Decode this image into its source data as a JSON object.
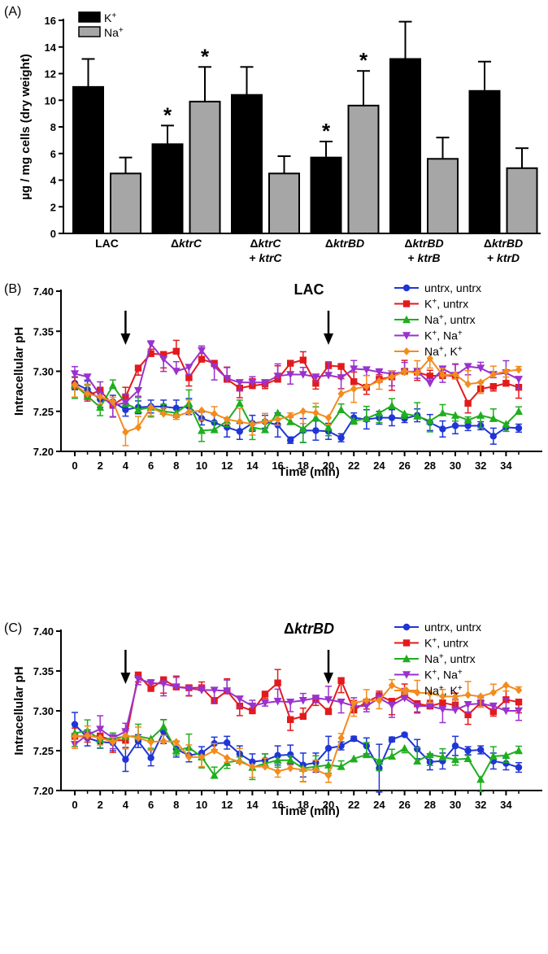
{
  "chart_data": [
    {
      "type": "bar",
      "panel_label": "(A)",
      "title": "",
      "ylabel": "µg / mg cells (dry weight)",
      "ylim": [
        0,
        16
      ],
      "yticks": [
        "0",
        "2",
        "4",
        "6",
        "8",
        "10",
        "12",
        "14",
        "16"
      ],
      "categories": [
        {
          "prefix": "",
          "italic": "",
          "line2_prefix": "",
          "line2_italic": "",
          "plain": "LAC"
        },
        {
          "prefix": "Δ",
          "italic": "ktrC",
          "line2_prefix": "",
          "line2_italic": ""
        },
        {
          "prefix": "Δ",
          "italic": "ktrC",
          "line2_prefix": "+ ",
          "line2_italic": "ktrC"
        },
        {
          "prefix": "Δ",
          "italic": "ktrBD",
          "line2_prefix": "",
          "line2_italic": ""
        },
        {
          "prefix": "Δ",
          "italic": "ktrBD",
          "line2_prefix": "+ ",
          "line2_italic": "ktrB"
        },
        {
          "prefix": "Δ",
          "italic": "ktrBD",
          "line2_prefix": "+ ",
          "line2_italic": "ktrD"
        }
      ],
      "series": [
        {
          "name": "K",
          "sup": "+",
          "color": "#000000",
          "values": [
            11.0,
            6.7,
            10.4,
            5.7,
            13.1,
            10.7
          ],
          "errors": [
            2.1,
            1.4,
            2.1,
            1.2,
            2.8,
            2.2
          ],
          "significant": [
            false,
            true,
            false,
            true,
            false,
            false
          ]
        },
        {
          "name": "Na",
          "sup": "+",
          "color": "#a6a6a6",
          "values": [
            4.5,
            9.9,
            4.5,
            9.6,
            5.6,
            4.9
          ],
          "errors": [
            1.2,
            2.6,
            1.3,
            2.6,
            1.6,
            1.5
          ],
          "significant": [
            false,
            true,
            false,
            true,
            false,
            false
          ]
        }
      ],
      "significance_mark": "*"
    },
    {
      "type": "line",
      "panel_label": "(B)",
      "title": "LAC",
      "title_italic": false,
      "title_prefix": "",
      "xlabel": "Time (min)",
      "ylabel": "Intracellular pH",
      "xlim": [
        0,
        35
      ],
      "ylim": [
        7.2,
        7.4
      ],
      "xticks": [
        0,
        2,
        4,
        6,
        8,
        10,
        12,
        14,
        16,
        18,
        20,
        22,
        24,
        26,
        28,
        30,
        32,
        34
      ],
      "yticks": [
        "7.20",
        "7.25",
        "7.30",
        "7.35",
        "7.40"
      ],
      "arrows_at": [
        4,
        20
      ],
      "x": [
        0,
        1,
        2,
        3,
        4,
        5,
        6,
        7,
        8,
        9,
        10,
        11,
        12,
        13,
        14,
        15,
        16,
        17,
        18,
        19,
        20,
        21,
        22,
        23,
        24,
        25,
        26,
        27,
        28,
        29,
        30,
        31,
        32,
        33,
        34,
        35
      ],
      "series": [
        {
          "name": "untrx, untrx",
          "color": "#1f35d6",
          "marker": "circle",
          "values": [
            7.285,
            7.277,
            7.265,
            7.262,
            7.252,
            7.255,
            7.256,
            7.256,
            7.254,
            7.256,
            7.241,
            7.236,
            7.23,
            7.225,
            7.235,
            7.237,
            7.233,
            7.214,
            7.226,
            7.226,
            7.225,
            7.217,
            7.242,
            7.24,
            7.242,
            7.242,
            7.241,
            7.245,
            7.236,
            7.228,
            7.232,
            7.232,
            7.232,
            7.219,
            7.23,
            7.229
          ],
          "errors": [
            0.008,
            0.012,
            0.01,
            0.008,
            0.008,
            0.008,
            0.008,
            0.008,
            0.01,
            0.01,
            0.008,
            0.01,
            0.012,
            0.01,
            0.01,
            0.008,
            0.015,
            0.004,
            0.015,
            0.012,
            0.01,
            0.005,
            0.006,
            0.012,
            0.008,
            0.01,
            0.005,
            0.008,
            0.01,
            0.01,
            0.01,
            0.006,
            0.005,
            0.01,
            0.005,
            0.005
          ]
        },
        {
          "name": "K",
          "name_sup": "+",
          "name_rest": ", untrx",
          "color": "#e31a1c",
          "marker": "square",
          "values": [
            7.282,
            7.27,
            7.276,
            7.258,
            7.268,
            7.304,
            7.322,
            7.321,
            7.325,
            7.292,
            7.315,
            7.31,
            7.29,
            7.279,
            7.282,
            7.284,
            7.29,
            7.31,
            7.314,
            7.285,
            7.307,
            7.306,
            7.287,
            7.28,
            7.29,
            7.293,
            7.3,
            7.299,
            7.294,
            7.295,
            7.294,
            7.26,
            7.278,
            7.281,
            7.285,
            7.28
          ]
        },
        {
          "name": "Na",
          "name_sup": "+",
          "name_rest": ", untrx",
          "color": "#1fae1f",
          "marker": "triangle-up",
          "values": [
            7.283,
            7.269,
            7.255,
            7.282,
            7.26,
            7.252,
            7.255,
            7.25,
            7.248,
            7.26,
            7.226,
            7.227,
            7.238,
            7.26,
            7.23,
            7.227,
            7.248,
            7.237,
            7.228,
            7.242,
            7.23,
            7.252,
            7.238,
            7.241,
            7.248,
            7.257,
            7.247,
            7.244,
            7.238,
            7.248,
            7.245,
            7.239,
            7.245,
            7.241,
            7.234,
            7.25
          ]
        },
        {
          "name": "K",
          "name_sup": "+",
          "name_rest": ", Na",
          "name_sup2": "+",
          "color": "#9a32cd",
          "marker": "triangle-down",
          "values": [
            7.297,
            7.293,
            7.27,
            7.257,
            7.261,
            7.276,
            7.334,
            7.315,
            7.3,
            7.305,
            7.326,
            7.306,
            7.291,
            7.286,
            7.286,
            7.286,
            7.294,
            7.296,
            7.296,
            7.293,
            7.295,
            7.292,
            7.303,
            7.302,
            7.299,
            7.297,
            7.299,
            7.3,
            7.285,
            7.303,
            7.295,
            7.306,
            7.304,
            7.296,
            7.298,
            7.29
          ]
        },
        {
          "name": "Na",
          "name_sup": "+",
          "name_rest": ", K",
          "name_sup2": "+",
          "color": "#f28c1e",
          "marker": "diamond",
          "values": [
            7.283,
            7.272,
            7.268,
            7.262,
            7.224,
            7.23,
            7.255,
            7.247,
            7.244,
            7.249,
            7.251,
            7.247,
            7.24,
            7.237,
            7.234,
            7.237,
            7.24,
            7.244,
            7.25,
            7.248,
            7.242,
            7.272,
            7.278,
            7.281,
            7.288,
            7.293,
            7.3,
            7.298,
            7.316,
            7.295,
            7.296,
            7.284,
            7.286,
            7.296,
            7.3,
            7.302
          ]
        }
      ]
    },
    {
      "type": "line",
      "panel_label": "(C)",
      "title": "ktrBD",
      "title_prefix": "Δ",
      "title_italic": true,
      "xlabel": "Time (min)",
      "ylabel": "Intracellular pH",
      "xlim": [
        0,
        35
      ],
      "ylim": [
        7.2,
        7.4
      ],
      "xticks": [
        0,
        2,
        4,
        6,
        8,
        10,
        12,
        14,
        16,
        18,
        20,
        22,
        24,
        26,
        28,
        30,
        32,
        34
      ],
      "yticks": [
        "7.20",
        "7.25",
        "7.30",
        "7.35",
        "7.40"
      ],
      "arrows_at": [
        4,
        20
      ],
      "x": [
        0,
        1,
        2,
        3,
        4,
        5,
        6,
        7,
        8,
        9,
        10,
        11,
        12,
        13,
        14,
        15,
        16,
        17,
        18,
        19,
        20,
        21,
        22,
        23,
        24,
        25,
        26,
        27,
        28,
        29,
        30,
        31,
        32,
        33,
        34,
        35
      ],
      "series": [
        {
          "name": "untrx, untrx",
          "color": "#1f35d6",
          "marker": "circle",
          "values": [
            7.283,
            7.266,
            7.261,
            7.26,
            7.239,
            7.262,
            7.241,
            7.274,
            7.252,
            7.244,
            7.247,
            7.259,
            7.26,
            7.246,
            7.236,
            7.238,
            7.244,
            7.245,
            7.232,
            7.235,
            7.253,
            7.256,
            7.265,
            7.256,
            7.228,
            7.264,
            7.27,
            7.252,
            7.236,
            7.237,
            7.256,
            7.25,
            7.251,
            7.237,
            7.234,
            7.229
          ],
          "errors": [
            0.015,
            0.01,
            0.008,
            0.01,
            0.015,
            0.008,
            0.01,
            0.015,
            0.01,
            0.008,
            0.008,
            0.008,
            0.008,
            0.01,
            0.01,
            0.008,
            0.012,
            0.012,
            0.015,
            0.012,
            0.015,
            0.005,
            0.003,
            0.01,
            0.03,
            0.003,
            0.002,
            0.012,
            0.01,
            0.01,
            0.012,
            0.005,
            0.005,
            0.01,
            0.008,
            0.006
          ]
        },
        {
          "name": "K",
          "name_sup": "+",
          "name_rest": ", untrx",
          "color": "#e31a1c",
          "marker": "square",
          "values": [
            7.268,
            7.268,
            7.268,
            7.263,
            7.263,
            7.345,
            7.328,
            7.339,
            7.33,
            7.329,
            7.329,
            7.313,
            7.325,
            7.306,
            7.3,
            7.321,
            7.335,
            7.289,
            7.293,
            7.314,
            7.299,
            7.338,
            7.301,
            7.311,
            7.319,
            7.312,
            7.32,
            7.309,
            7.306,
            7.31,
            7.307,
            7.295,
            7.31,
            7.299,
            7.314,
            7.311
          ]
        },
        {
          "name": "Na",
          "name_sup": "+",
          "name_rest": ", untrx",
          "color": "#1fae1f",
          "marker": "triangle-up",
          "values": [
            7.272,
            7.275,
            7.264,
            7.265,
            7.268,
            7.268,
            7.265,
            7.28,
            7.25,
            7.254,
            7.242,
            7.219,
            7.235,
            7.238,
            7.229,
            7.234,
            7.238,
            7.238,
            7.228,
            7.23,
            7.232,
            7.23,
            7.24,
            7.245,
            7.237,
            7.243,
            7.253,
            7.237,
            7.245,
            7.242,
            7.239,
            7.24,
            7.214,
            7.243,
            7.244,
            7.25
          ]
        },
        {
          "name": "K",
          "name_sup": "+",
          "name_rest": ", Na",
          "name_sup2": "+",
          "color": "#9a32cd",
          "marker": "triangle-down",
          "values": [
            7.258,
            7.27,
            7.277,
            7.266,
            7.274,
            7.34,
            7.335,
            7.334,
            7.33,
            7.328,
            7.326,
            7.326,
            7.325,
            7.315,
            7.306,
            7.31,
            7.312,
            7.311,
            7.313,
            7.316,
            7.314,
            7.311,
            7.306,
            7.306,
            7.316,
            7.307,
            7.316,
            7.306,
            7.306,
            7.302,
            7.301,
            7.308,
            7.309,
            7.306,
            7.3,
            7.3
          ]
        },
        {
          "name": "Na",
          "name_sup": "+",
          "name_rest": ", K",
          "name_sup2": "+",
          "color": "#f28c1e",
          "marker": "diamond",
          "values": [
            7.268,
            7.269,
            7.266,
            7.261,
            7.269,
            7.266,
            7.261,
            7.262,
            7.261,
            7.242,
            7.242,
            7.25,
            7.241,
            7.236,
            7.23,
            7.23,
            7.224,
            7.228,
            7.226,
            7.226,
            7.219,
            7.266,
            7.31,
            7.313,
            7.313,
            7.332,
            7.325,
            7.323,
            7.322,
            7.318,
            7.318,
            7.32,
            7.318,
            7.323,
            7.332,
            7.326
          ]
        }
      ]
    }
  ]
}
